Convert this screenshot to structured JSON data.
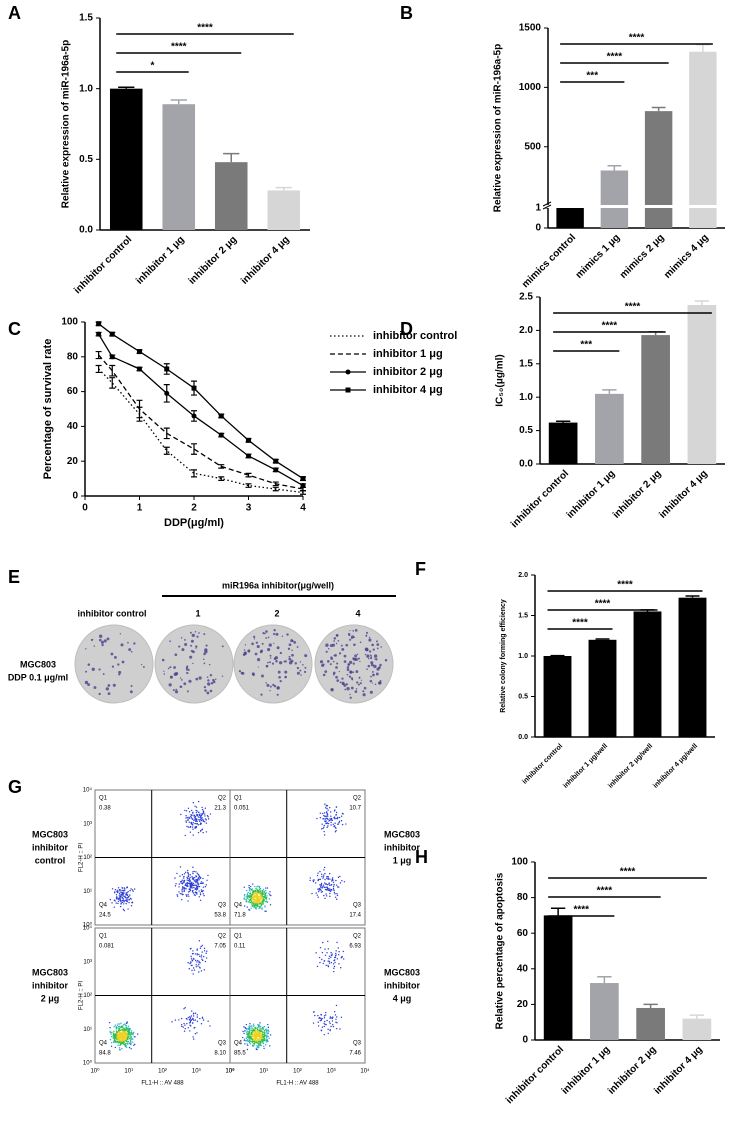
{
  "chart_data": [
    {
      "panel": "A",
      "type": "bar",
      "ylabel": "Relative expression of miR-196a-5p",
      "categories": [
        "inhibitor control",
        "inhibitor 1 μg",
        "inhibitor 2 μg",
        "inhibitor 4 μg"
      ],
      "values": [
        1.0,
        0.89,
        0.48,
        0.28
      ],
      "errors": [
        0.01,
        0.03,
        0.06,
        0.02
      ],
      "colors": [
        "#000000",
        "#a3a3aa",
        "#7a7a7a",
        "#d6d6d6"
      ],
      "ylim": [
        0,
        1.5
      ],
      "yticks": [
        {
          "value": 0,
          "label": "0.0"
        },
        0.5,
        {
          "value": 1,
          "label": "1.0"
        },
        1.5
      ],
      "annotations": [
        {
          "span": [
            0,
            1
          ],
          "text": "*"
        },
        {
          "span": [
            0,
            2
          ],
          "text": "****"
        },
        {
          "span": [
            0,
            3
          ],
          "text": "****"
        }
      ]
    },
    {
      "panel": "B",
      "type": "bar",
      "ylabel": "Relative expression of miR-196a-5p",
      "categories": [
        "mimics control",
        "mimics 1 μg",
        "mimics 2 μg",
        "mimics 4 μg"
      ],
      "values": [
        1,
        300,
        800,
        1300
      ],
      "errors": [
        0.05,
        40,
        30,
        60
      ],
      "colors": [
        "#000000",
        "#a3a3aa",
        "#7a7a7a",
        "#d6d6d6"
      ],
      "ylim": [
        0,
        1500
      ],
      "yticks": [
        0,
        1,
        500,
        1000,
        1500
      ],
      "axis_break": 1,
      "annotations": [
        {
          "span": [
            0,
            1
          ],
          "text": "***"
        },
        {
          "span": [
            0,
            2
          ],
          "text": "****"
        },
        {
          "span": [
            0,
            3
          ],
          "text": "****"
        }
      ]
    },
    {
      "panel": "C",
      "type": "line",
      "xlabel": "DDP(μg/ml)",
      "ylabel": "Percentage of survival rate",
      "x": [
        0.25,
        0.5,
        1,
        1.5,
        2,
        2.5,
        3,
        3.5,
        4
      ],
      "series": [
        {
          "name": "inhibitor control",
          "color": "#000000",
          "dash": "dotted",
          "marker": "none",
          "values": [
            73,
            65,
            47,
            26,
            13,
            10,
            6,
            4,
            2
          ],
          "errors": [
            2,
            3,
            4,
            2,
            2,
            1,
            1,
            1,
            1
          ]
        },
        {
          "name": "inhibitor 1 μg",
          "color": "#000000",
          "dash": "dashed",
          "marker": "none",
          "values": [
            81,
            72,
            50,
            36,
            27,
            17,
            12,
            7,
            4
          ],
          "errors": [
            2,
            3,
            5,
            3,
            3,
            1,
            1,
            1,
            1
          ]
        },
        {
          "name": "inhibitor 2 μg",
          "color": "#000000",
          "dash": "solid",
          "marker": "circle",
          "values": [
            93,
            80,
            73,
            59,
            46,
            35,
            23,
            15,
            6
          ],
          "errors": [
            1,
            1,
            1,
            5,
            3,
            1,
            1,
            1,
            1
          ]
        },
        {
          "name": "inhibitor 4 μg",
          "color": "#000000",
          "dash": "solid",
          "marker": "square",
          "values": [
            99,
            93,
            83,
            73,
            62,
            46,
            32,
            20,
            10
          ],
          "errors": [
            1,
            1,
            1,
            3,
            4,
            1,
            1,
            1,
            1
          ]
        }
      ],
      "xlim": [
        0,
        4
      ],
      "xticks": [
        0,
        1,
        2,
        3,
        4
      ],
      "ylim": [
        0,
        100
      ],
      "yticks": [
        0,
        20,
        40,
        60,
        80,
        100
      ],
      "legend": "upper right"
    },
    {
      "panel": "D",
      "type": "bar",
      "ylabel": "IC₅₀(μg/ml)",
      "categories": [
        "inhibitor control",
        "inhibitor 1 μg",
        "inhibitor 2 μg",
        "inhibitor 4 μg"
      ],
      "values": [
        0.62,
        1.05,
        1.93,
        2.38
      ],
      "errors": [
        0.02,
        0.06,
        0.05,
        0.06
      ],
      "colors": [
        "#000000",
        "#a3a3aa",
        "#7a7a7a",
        "#d6d6d6"
      ],
      "ylim": [
        0,
        2.5
      ],
      "yticks": [
        {
          "value": 0,
          "label": "0.0"
        },
        0.5,
        {
          "value": 1,
          "label": "1.0"
        },
        1.5,
        {
          "value": 2,
          "label": "2.0"
        },
        2.5
      ],
      "annotations": [
        {
          "span": [
            0,
            1
          ],
          "text": "***"
        },
        {
          "span": [
            0,
            2
          ],
          "text": "****"
        },
        {
          "span": [
            0,
            3
          ],
          "text": "****"
        }
      ]
    },
    {
      "panel": "F",
      "type": "bar",
      "ylabel": "Relative colony forming efficiency",
      "categories": [
        "inhibitor control",
        "inhibitor 1 μg/well",
        "inhibitor 2 μg/well",
        "inhibitor 4 μg/well"
      ],
      "values": [
        1.0,
        1.2,
        1.55,
        1.72
      ],
      "errors": [
        0.005,
        0.01,
        0.02,
        0.02
      ],
      "colors": [
        "#000000",
        "#000000",
        "#000000",
        "#000000"
      ],
      "ylim": [
        0,
        2
      ],
      "yticks": [
        {
          "value": 0,
          "label": "0.0"
        },
        0.5,
        {
          "value": 1,
          "label": "1.0"
        },
        1.5,
        {
          "value": 2,
          "label": "2.0"
        }
      ],
      "annotations": [
        {
          "span": [
            0,
            1
          ],
          "text": "****"
        },
        {
          "span": [
            0,
            2
          ],
          "text": "****"
        },
        {
          "span": [
            0,
            3
          ],
          "text": "****"
        }
      ]
    },
    {
      "panel": "H",
      "type": "bar",
      "ylabel": "Relative percentage of apoptosis",
      "categories": [
        "inhibitor control",
        "inhibitor 1 μg",
        "inhibitor 2 μg",
        "inhibitor 4 μg"
      ],
      "values": [
        70,
        32,
        18,
        12
      ],
      "errors": [
        4,
        3.5,
        2,
        2
      ],
      "colors": [
        "#000000",
        "#a3a3aa",
        "#7a7a7a",
        "#d6d6d6"
      ],
      "ylim": [
        0,
        100
      ],
      "yticks": [
        0,
        20,
        40,
        60,
        80,
        100
      ],
      "annotations": [
        {
          "span": [
            0,
            1
          ],
          "text": "****"
        },
        {
          "span": [
            0,
            2
          ],
          "text": "****"
        },
        {
          "span": [
            0,
            3
          ],
          "text": "****"
        }
      ]
    }
  ],
  "panel_E": {
    "letter": "E",
    "header": "miR196a inhibitor(μg/well)",
    "columns": [
      "inhibitor control",
      "1",
      "2",
      "4"
    ],
    "row_label": [
      "MGC803",
      "DDP 0.1 μg/ml"
    ]
  },
  "panel_G": {
    "letter": "G",
    "xlabel": "FL1-H :: AV 488",
    "ylabel": "FL2-H :: PI",
    "ticks": [
      "10⁰",
      "10¹",
      "10²",
      "10³",
      "10⁴"
    ],
    "quadrant_names": [
      "Q1",
      "Q2",
      "Q3",
      "Q4"
    ],
    "plots": [
      {
        "label": [
          "MGC803",
          "inhibitor",
          "control"
        ],
        "values": [
          "0.38",
          "21.3",
          "53.8",
          "24.5"
        ]
      },
      {
        "label": [
          "MGC803",
          "inhibitor",
          "1 μg"
        ],
        "values": [
          "0.051",
          "10.7",
          "17.4",
          "71.8"
        ]
      },
      {
        "label": [
          "MGC803",
          "inhibitor",
          "2 μg"
        ],
        "values": [
          "0.081",
          "7.05",
          "8.10",
          "84.8"
        ]
      },
      {
        "label": [
          "MGC803",
          "inhibitor",
          "4 μg"
        ],
        "values": [
          "0.11",
          "6.93",
          "7.46",
          "85.5"
        ]
      }
    ]
  }
}
